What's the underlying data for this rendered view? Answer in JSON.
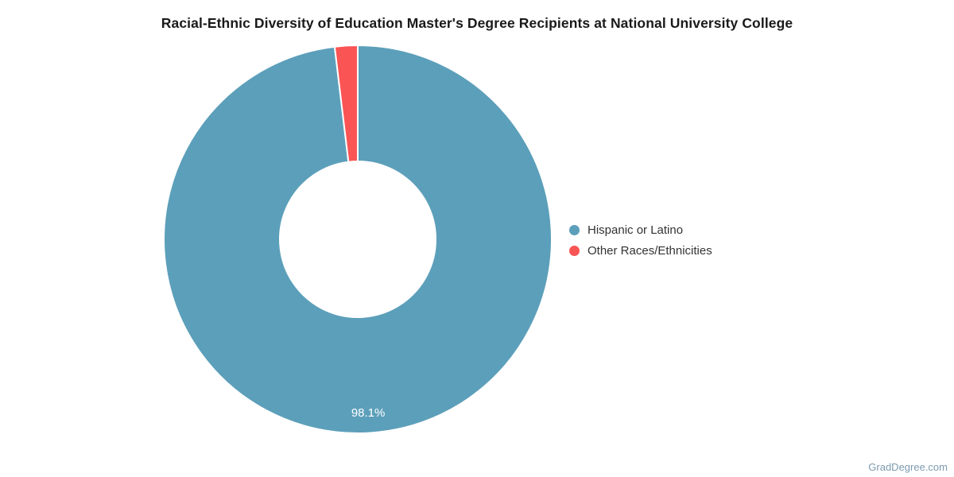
{
  "title": "Racial-Ethnic Diversity of Education Master's Degree Recipients at National University College",
  "chart_data": {
    "type": "pie",
    "subtype": "donut",
    "title": "Racial-Ethnic Diversity of Education Master's Degree Recipients at National University College",
    "categories": [
      "Hispanic or Latino",
      "Other Races/Ethnicities"
    ],
    "values": [
      98.1,
      1.9
    ],
    "unit": "percent",
    "colors": [
      "#5C9FBA",
      "#FA5454"
    ],
    "data_labels": [
      "98.1%",
      ""
    ],
    "data_label_color": "#ffffff",
    "slice_border_color": "#ffffff",
    "legend_position": "right",
    "start_angle_deg": 0,
    "direction": "clockwise"
  },
  "page": {
    "background": "#ffffff",
    "watermark": "GradDegree.com",
    "watermark_color": "#7d9bb0"
  }
}
